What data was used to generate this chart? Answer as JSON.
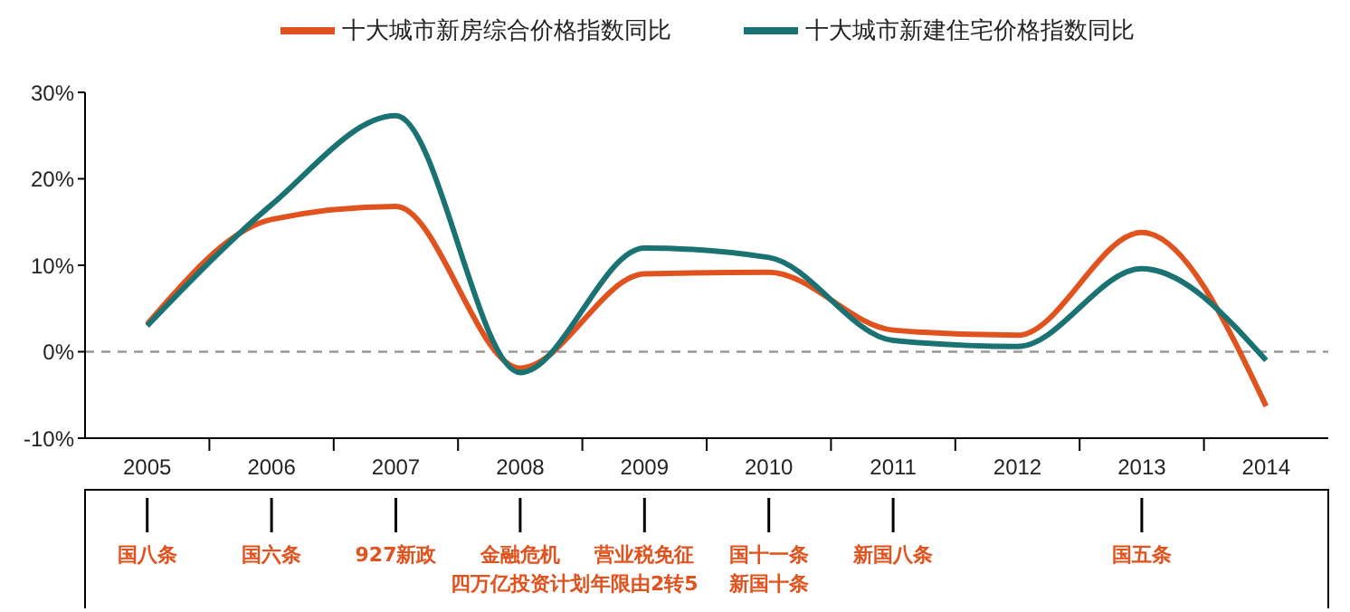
{
  "chart_data": {
    "type": "line",
    "legend": "top",
    "marker": "none",
    "line_style": "solid",
    "categories": [
      "2005",
      "2006",
      "2007",
      "2008",
      "2009",
      "2010",
      "2011",
      "2012",
      "2013",
      "2014"
    ],
    "ylim": [
      -10,
      30
    ],
    "yticks": [
      {
        "value": -10,
        "label": "-10%"
      },
      {
        "value": 0,
        "label": "0%"
      },
      {
        "value": 10,
        "label": "10%"
      },
      {
        "value": 20,
        "label": "20%"
      },
      {
        "value": 30,
        "label": "30%"
      }
    ],
    "ref_lines": [
      {
        "axis": "y",
        "value": 0,
        "color": "#999999",
        "line_style": "dashed"
      }
    ],
    "series": [
      {
        "name": "十大城市新房综合价格指数同比",
        "color": "#e0531f",
        "values": [
          3.2,
          15.3,
          16.8,
          -1.9,
          9,
          9.2,
          2.5,
          1.9,
          13.8,
          -6.3
        ]
      },
      {
        "name": "十大城市新建住宅价格指数同比",
        "color": "#1a7272",
        "values": [
          3.0,
          17,
          27.3,
          -2.4,
          12,
          10.9,
          1.3,
          0.6,
          9.6,
          -1.0
        ]
      }
    ],
    "annotations": [
      {
        "text": "国八条",
        "x": "2005"
      },
      {
        "text": "国六条",
        "x": "2006"
      },
      {
        "text": "927新政",
        "x": "2007"
      },
      {
        "text": "金融危机",
        "x": "2008"
      },
      "四万亿投资计划",
      {
        "text": "营业税免征",
        "x": "2009"
      },
      "年限由2转5",
      {
        "text": "国十一条",
        "x": "2010"
      },
      "新国十条",
      {
        "text": "新国八条",
        "x": "2011"
      },
      {
        "text": "国五条",
        "x": "2013"
      }
    ]
  }
}
